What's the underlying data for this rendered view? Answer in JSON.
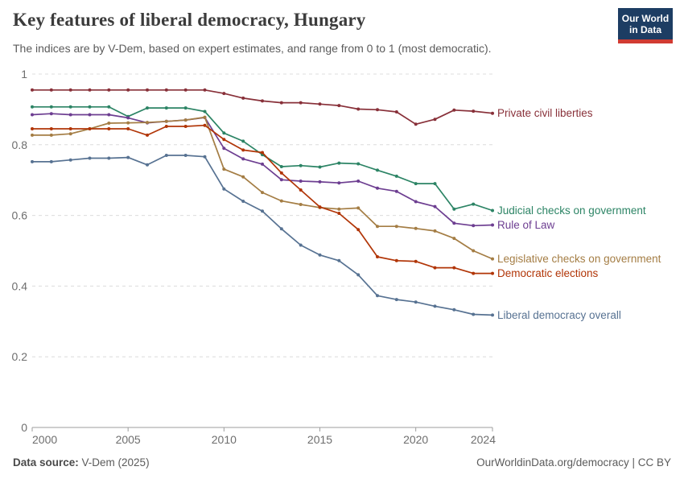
{
  "header": {
    "title": "Key features of liberal democracy, Hungary",
    "subtitle": "The indices are by V-Dem, based on expert estimates, and range from 0 to 1 (most democratic).",
    "logo": {
      "line1": "Our World",
      "line2": "in Data",
      "bg_color": "#1D3D63",
      "accent_color": "#D13B32"
    }
  },
  "chart_data": {
    "type": "line",
    "title": "Key features of liberal democracy, Hungary",
    "xlabel": "",
    "ylabel": "",
    "xlim": [
      2000,
      2024
    ],
    "ylim": [
      0,
      1
    ],
    "grid": "horizontal-dashed",
    "legend_position": "end-of-line-labels",
    "x": [
      2000,
      2001,
      2002,
      2003,
      2004,
      2005,
      2006,
      2007,
      2008,
      2009,
      2010,
      2011,
      2012,
      2013,
      2014,
      2015,
      2016,
      2017,
      2018,
      2019,
      2020,
      2021,
      2022,
      2023,
      2024
    ],
    "series": [
      {
        "name": "Private civil liberties",
        "color": "#883039",
        "values": [
          0.955,
          0.955,
          0.955,
          0.955,
          0.955,
          0.955,
          0.955,
          0.955,
          0.955,
          0.955,
          0.945,
          0.932,
          0.924,
          0.919,
          0.919,
          0.915,
          0.911,
          0.901,
          0.899,
          0.893,
          0.858,
          0.872,
          0.898,
          0.895,
          0.889
        ]
      },
      {
        "name": "Judicial checks on government",
        "color": "#2C8465",
        "values": [
          0.907,
          0.907,
          0.907,
          0.907,
          0.907,
          0.88,
          0.904,
          0.904,
          0.904,
          0.894,
          0.833,
          0.81,
          0.772,
          0.738,
          0.741,
          0.737,
          0.748,
          0.746,
          0.728,
          0.711,
          0.69,
          0.69,
          0.618,
          0.632,
          0.614
        ]
      },
      {
        "name": "Rule of Law",
        "color": "#6D3E91",
        "values": [
          0.885,
          0.888,
          0.885,
          0.885,
          0.885,
          0.876,
          0.862,
          0.866,
          0.87,
          0.877,
          0.79,
          0.76,
          0.745,
          0.701,
          0.697,
          0.695,
          0.692,
          0.697,
          0.677,
          0.668,
          0.639,
          0.625,
          0.578,
          0.571,
          0.573
        ]
      },
      {
        "name": "Legislative checks on government",
        "color": "#A47D44",
        "values": [
          0.827,
          0.827,
          0.831,
          0.845,
          0.861,
          0.862,
          0.863,
          0.866,
          0.87,
          0.878,
          0.731,
          0.709,
          0.665,
          0.641,
          0.631,
          0.622,
          0.618,
          0.621,
          0.569,
          0.569,
          0.563,
          0.556,
          0.535,
          0.5,
          0.477
        ]
      },
      {
        "name": "Democratic elections",
        "color": "#B13507",
        "values": [
          0.845,
          0.845,
          0.845,
          0.845,
          0.845,
          0.845,
          0.827,
          0.852,
          0.852,
          0.855,
          0.815,
          0.785,
          0.778,
          0.72,
          0.672,
          0.624,
          0.606,
          0.56,
          0.483,
          0.472,
          0.47,
          0.452,
          0.452,
          0.436,
          0.436
        ]
      },
      {
        "name": "Liberal democracy overall",
        "color": "#577292",
        "values": [
          0.752,
          0.752,
          0.757,
          0.762,
          0.762,
          0.764,
          0.743,
          0.77,
          0.77,
          0.766,
          0.675,
          0.64,
          0.612,
          0.562,
          0.516,
          0.488,
          0.472,
          0.432,
          0.373,
          0.362,
          0.355,
          0.343,
          0.333,
          0.32,
          0.318
        ]
      }
    ],
    "xticks": [
      {
        "value": 2000,
        "label": "2000"
      },
      {
        "value": 2005,
        "label": "2005"
      },
      {
        "value": 2010,
        "label": "2010"
      },
      {
        "value": 2015,
        "label": "2015"
      },
      {
        "value": 2020,
        "label": "2020"
      },
      {
        "value": 2024,
        "label": "2024"
      }
    ],
    "yticks": [
      {
        "value": 0,
        "label": "0"
      },
      {
        "value": 0.2,
        "label": "0.2"
      },
      {
        "value": 0.4,
        "label": "0.4"
      },
      {
        "value": 0.6,
        "label": "0.6"
      },
      {
        "value": 0.8,
        "label": "0.8"
      },
      {
        "value": 1,
        "label": "1"
      }
    ]
  },
  "footer": {
    "source_label": "Data source:",
    "source_value": " V-Dem (2025)",
    "credit": "OurWorldinData.org/democracy | CC BY"
  },
  "style": {
    "grid_color": "#dcdcdc",
    "axis_color": "#9e9e9e",
    "tick_text_color": "#6e6e6e"
  }
}
